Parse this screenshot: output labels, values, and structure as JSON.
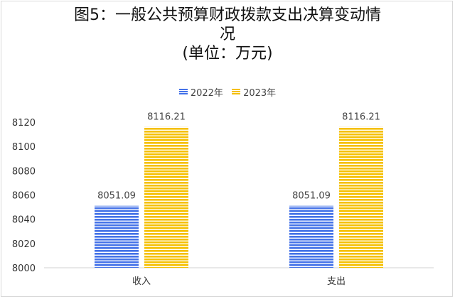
{
  "chart_data": {
    "type": "bar",
    "title": "图5：一般公共预算财政拨款支出决算变动情况",
    "subtitle": "(单位：万元)",
    "categories": [
      "收入",
      "支出"
    ],
    "series": [
      {
        "name": "2022年",
        "values": [
          8051.09,
          8051.09
        ],
        "labels": [
          "8051.09",
          "8051.09"
        ],
        "color": "#4472e8"
      },
      {
        "name": "2023年",
        "values": [
          8116.21,
          8116.21
        ],
        "labels": [
          "8116.21",
          "8116.21"
        ],
        "color": "#f5c000"
      }
    ],
    "yticks": [
      "8000",
      "8020",
      "8040",
      "8060",
      "8080",
      "8100",
      "8120"
    ],
    "ylim": [
      8000,
      8120
    ],
    "legend_position": "top",
    "grid": false,
    "bar_pattern": "horizontal-stripes"
  },
  "title_line1": "图5：一般公共预算财政拨款支出决算变动情",
  "title_line2": "况",
  "subtitle": "(单位：万元)",
  "legend": [
    {
      "label": "2022年",
      "color": "#4472e8"
    },
    {
      "label": "2023年",
      "color": "#f5c000"
    }
  ]
}
